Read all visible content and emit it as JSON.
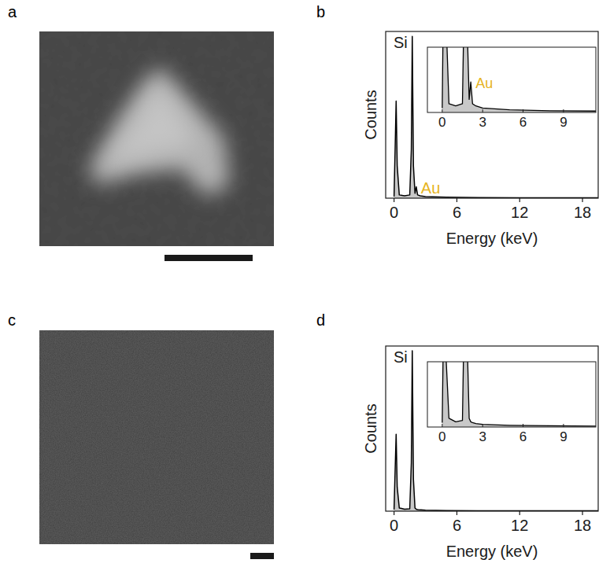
{
  "panel_labels": [
    "a",
    "b",
    "c",
    "d"
  ],
  "chart_data": [
    {
      "type": "line",
      "x_label": "Energy (keV)",
      "y_label": "Counts",
      "xlim": [
        -0.8,
        19.5
      ],
      "xticks": [
        0,
        6,
        12,
        18
      ],
      "ylim": [
        0,
        1.03
      ],
      "tick_labels": "x",
      "color": "#000000",
      "x": [
        0,
        0.1,
        0.2,
        0.3,
        0.5,
        1.0,
        1.5,
        1.65,
        1.74,
        1.85,
        2.0,
        2.12,
        2.25,
        2.5,
        3,
        5,
        8,
        12,
        16,
        19.5
      ],
      "values": [
        0.01,
        0.3,
        0.6,
        0.2,
        0.02,
        0.015,
        0.02,
        0.3,
        1.0,
        0.2,
        0.03,
        0.07,
        0.02,
        0.015,
        0.01,
        0.006,
        0.004,
        0.003,
        0.002,
        0.002
      ],
      "annotations": [
        {
          "text": "Si",
          "x": 1.74
        },
        {
          "text": "Au",
          "x": 2.12,
          "color": "#e6b422"
        }
      ],
      "inset": {
        "xlim": [
          -1.1,
          11.4
        ],
        "xticks": [
          0,
          3,
          6,
          9
        ],
        "ylim": [
          0,
          0.15
        ],
        "annotations": [
          {
            "text": "Au",
            "x": 2.12,
            "color": "#e6b422"
          }
        ]
      }
    },
    {
      "type": "line",
      "x_label": "Energy (keV)",
      "y_label": "Counts",
      "xlim": [
        -0.8,
        19.5
      ],
      "xticks": [
        0,
        6,
        12,
        18
      ],
      "ylim": [
        0,
        1.03
      ],
      "tick_labels": "x",
      "color": "#000000",
      "x": [
        0,
        0.1,
        0.2,
        0.3,
        0.5,
        1.0,
        1.5,
        1.65,
        1.74,
        1.85,
        2.0,
        2.12,
        2.25,
        2.5,
        3,
        5,
        8,
        12,
        16,
        19.5
      ],
      "values": [
        0.01,
        0.25,
        0.48,
        0.15,
        0.02,
        0.012,
        0.015,
        0.3,
        1.0,
        0.2,
        0.02,
        0.012,
        0.01,
        0.008,
        0.006,
        0.004,
        0.003,
        0.002,
        0.002,
        0.002
      ],
      "annotations": [
        {
          "text": "Si",
          "x": 1.74
        }
      ],
      "inset": {
        "xlim": [
          -1.1,
          11.4
        ],
        "xticks": [
          0,
          3,
          6,
          9
        ],
        "ylim": [
          0,
          0.15
        ],
        "annotations": []
      }
    }
  ]
}
